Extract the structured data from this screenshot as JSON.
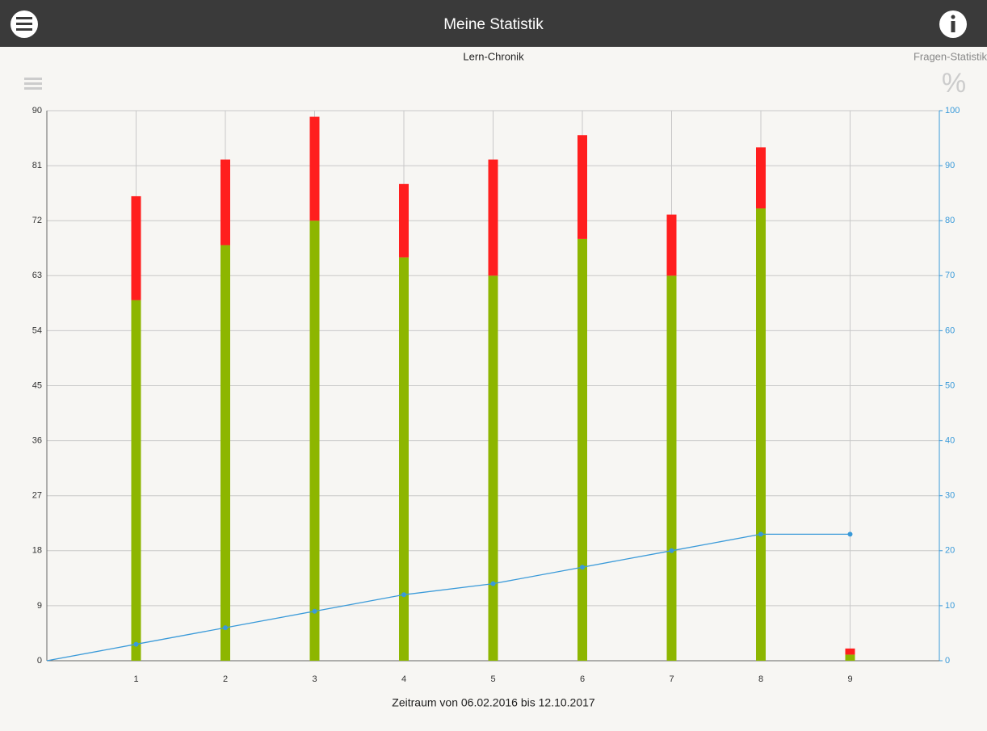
{
  "header": {
    "title": "Meine Statistik"
  },
  "tabs": [
    "Lern-Chronik",
    "Fragen-Statistik"
  ],
  "percent_icon": "%",
  "chart_data": {
    "type": "bar",
    "stacked": true,
    "grid": true,
    "xlabel": "Zeitraum von 06.02.2016 bis 12.10.2017",
    "x": [
      1,
      2,
      3,
      4,
      5,
      6,
      7,
      8,
      9
    ],
    "xlim": [
      0,
      10
    ],
    "xticks": [
      1,
      2,
      3,
      4,
      5,
      6,
      7,
      8,
      9
    ],
    "ylim": [
      0,
      90
    ],
    "yticks": [
      0,
      9,
      18,
      27,
      36,
      45,
      54,
      63,
      72,
      81,
      90
    ],
    "y2lim": [
      0,
      100
    ],
    "y2ticks": [
      0,
      10,
      20,
      30,
      40,
      50,
      60,
      70,
      80,
      90,
      100
    ],
    "series": [
      {
        "color": "#8db600",
        "values": [
          59,
          68,
          72,
          66,
          63,
          69,
          63,
          74,
          1
        ]
      },
      {
        "color": "#ff1e1e",
        "values": [
          17,
          14,
          17,
          12,
          19,
          17,
          10,
          10,
          1
        ]
      },
      {
        "type": "line",
        "axis": "y2",
        "color": "#3a9ad9",
        "x": [
          0,
          1,
          2,
          3,
          4,
          5,
          6,
          7,
          8,
          9
        ],
        "values": [
          0,
          3,
          6,
          9,
          12,
          14,
          17,
          20,
          23,
          23
        ]
      }
    ]
  }
}
